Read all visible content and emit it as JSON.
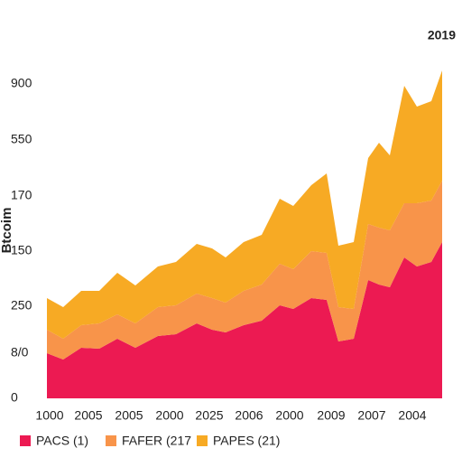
{
  "chart_data": {
    "type": "stacked-area",
    "title": "2019",
    "y_label": "Btcoim",
    "x": [
      0,
      18,
      38,
      58,
      78,
      98,
      123,
      143,
      166,
      183,
      198,
      218,
      238,
      258,
      273,
      293,
      310,
      323,
      340,
      356,
      368,
      380,
      396,
      410,
      426,
      438
    ],
    "series": [
      {
        "name": "PACS (1)",
        "color": "#ec1a52",
        "values": [
          50,
          43,
          56,
          55,
          66,
          56,
          69,
          71,
          83,
          76,
          73,
          81,
          86,
          103,
          99,
          111,
          109,
          63,
          66,
          131,
          126,
          123,
          156,
          146,
          151,
          173
        ]
      },
      {
        "name": "FAFER (217",
        "color": "#f8944a",
        "values": [
          26,
          23,
          25,
          28,
          27,
          27,
          32,
          32,
          33,
          35,
          33,
          38,
          40,
          46,
          44,
          52,
          52,
          38,
          33,
          62,
          63,
          63,
          60,
          70,
          68,
          68
        ]
      },
      {
        "name": "PAPES (21)",
        "color": "#f7aa24",
        "values": [
          35,
          35,
          38,
          36,
          46,
          42,
          45,
          48,
          55,
          55,
          50,
          54,
          55,
          72,
          70,
          73,
          88,
          68,
          74,
          73,
          94,
          83,
          130,
          107,
          110,
          122
        ]
      }
    ],
    "xlim": [
      0,
      438
    ],
    "xticks": [
      {
        "value": 3,
        "label": "1000"
      },
      {
        "value": 46,
        "label": "2005"
      },
      {
        "value": 91,
        "label": "2005"
      },
      {
        "value": 136,
        "label": "2000"
      },
      {
        "value": 180,
        "label": "2025"
      },
      {
        "value": 224,
        "label": "2006"
      },
      {
        "value": 269,
        "label": "2000"
      },
      {
        "value": 315,
        "label": "2009"
      },
      {
        "value": 360,
        "label": "2007"
      },
      {
        "value": 405,
        "label": "2004"
      }
    ],
    "ylim": [
      0,
      370
    ],
    "yticks": [
      0,
      {
        "value": 50,
        "label": "8/0"
      },
      {
        "value": 102,
        "label": "250"
      },
      {
        "value": 163,
        "label": "150"
      },
      {
        "value": 224,
        "label": "170"
      },
      {
        "value": 286,
        "label": "550"
      },
      {
        "value": 348,
        "label": "900"
      }
    ]
  }
}
